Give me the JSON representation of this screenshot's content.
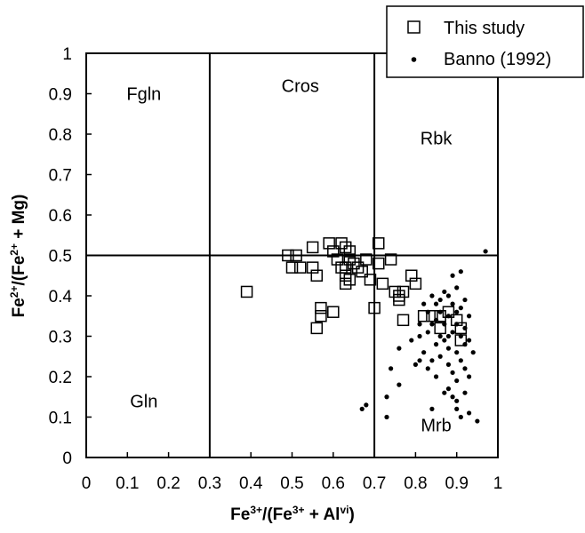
{
  "chart_data": {
    "type": "scatter",
    "title": "",
    "xlabel": {
      "base": "Fe",
      "sup1": "3+",
      "mid": "/(Fe",
      "sup2": "3+",
      "mid2": " + Al",
      "sup3": "vi",
      "end": ")"
    },
    "ylabel": {
      "base": "Fe",
      "sup1": "2+",
      "mid": "/(Fe",
      "sup2": "2+",
      "end": " + Mg)"
    },
    "xlim": [
      0,
      1
    ],
    "ylim": [
      0,
      1
    ],
    "x_ticks": [
      "0",
      "0.1",
      "0.2",
      "0.3",
      "0.4",
      "0.5",
      "0.6",
      "0.7",
      "0.8",
      "0.9",
      "1"
    ],
    "y_ticks": [
      "0",
      "0.1",
      "0.2",
      "0.3",
      "0.4",
      "0.5",
      "0.6",
      "0.7",
      "0.8",
      "0.9",
      "1"
    ],
    "grid": false,
    "legend_position": "top-right",
    "region_lines": [
      {
        "x1": 0.3,
        "y1": 0,
        "x2": 0.3,
        "y2": 1
      },
      {
        "x1": 0.7,
        "y1": 0,
        "x2": 0.7,
        "y2": 1
      },
      {
        "x1": 0,
        "y1": 0.5,
        "x2": 1,
        "y2": 0.5
      }
    ],
    "region_labels": [
      {
        "text": "Fgln",
        "x": 0.14,
        "y": 0.9
      },
      {
        "text": "Cros",
        "x": 0.52,
        "y": 0.92
      },
      {
        "text": "Rbk",
        "x": 0.85,
        "y": 0.79
      },
      {
        "text": "Gln",
        "x": 0.14,
        "y": 0.14
      },
      {
        "text": "Mrb",
        "x": 0.85,
        "y": 0.08
      }
    ],
    "series": [
      {
        "name": "This study",
        "marker": "open-square",
        "points": [
          [
            0.39,
            0.41
          ],
          [
            0.49,
            0.5
          ],
          [
            0.5,
            0.47
          ],
          [
            0.51,
            0.5
          ],
          [
            0.52,
            0.47
          ],
          [
            0.55,
            0.52
          ],
          [
            0.55,
            0.47
          ],
          [
            0.56,
            0.45
          ],
          [
            0.56,
            0.32
          ],
          [
            0.57,
            0.37
          ],
          [
            0.57,
            0.35
          ],
          [
            0.59,
            0.53
          ],
          [
            0.6,
            0.51
          ],
          [
            0.6,
            0.36
          ],
          [
            0.61,
            0.49
          ],
          [
            0.62,
            0.53
          ],
          [
            0.62,
            0.47
          ],
          [
            0.63,
            0.52
          ],
          [
            0.63,
            0.47
          ],
          [
            0.63,
            0.45
          ],
          [
            0.63,
            0.43
          ],
          [
            0.64,
            0.51
          ],
          [
            0.64,
            0.49
          ],
          [
            0.64,
            0.44
          ],
          [
            0.65,
            0.48
          ],
          [
            0.66,
            0.47
          ],
          [
            0.67,
            0.46
          ],
          [
            0.68,
            0.49
          ],
          [
            0.69,
            0.44
          ],
          [
            0.7,
            0.37
          ],
          [
            0.71,
            0.53
          ],
          [
            0.71,
            0.48
          ],
          [
            0.72,
            0.43
          ],
          [
            0.74,
            0.49
          ],
          [
            0.75,
            0.41
          ],
          [
            0.76,
            0.4
          ],
          [
            0.76,
            0.39
          ],
          [
            0.77,
            0.41
          ],
          [
            0.77,
            0.34
          ],
          [
            0.79,
            0.45
          ],
          [
            0.8,
            0.43
          ],
          [
            0.82,
            0.35
          ],
          [
            0.84,
            0.35
          ],
          [
            0.86,
            0.35
          ],
          [
            0.86,
            0.32
          ],
          [
            0.88,
            0.36
          ],
          [
            0.9,
            0.34
          ],
          [
            0.91,
            0.32
          ],
          [
            0.91,
            0.29
          ]
        ]
      },
      {
        "name": "Banno (1992)",
        "marker": "filled-dot",
        "points": [
          [
            0.67,
            0.12
          ],
          [
            0.68,
            0.13
          ],
          [
            0.73,
            0.15
          ],
          [
            0.73,
            0.1
          ],
          [
            0.74,
            0.22
          ],
          [
            0.76,
            0.27
          ],
          [
            0.76,
            0.18
          ],
          [
            0.79,
            0.29
          ],
          [
            0.8,
            0.23
          ],
          [
            0.81,
            0.3
          ],
          [
            0.81,
            0.33
          ],
          [
            0.82,
            0.38
          ],
          [
            0.82,
            0.26
          ],
          [
            0.83,
            0.36
          ],
          [
            0.83,
            0.31
          ],
          [
            0.83,
            0.22
          ],
          [
            0.84,
            0.4
          ],
          [
            0.84,
            0.33
          ],
          [
            0.84,
            0.24
          ],
          [
            0.84,
            0.12
          ],
          [
            0.85,
            0.38
          ],
          [
            0.85,
            0.28
          ],
          [
            0.85,
            0.2
          ],
          [
            0.86,
            0.36
          ],
          [
            0.86,
            0.3
          ],
          [
            0.86,
            0.25
          ],
          [
            0.87,
            0.16
          ],
          [
            0.87,
            0.41
          ],
          [
            0.87,
            0.33
          ],
          [
            0.87,
            0.29
          ],
          [
            0.88,
            0.4
          ],
          [
            0.88,
            0.35
          ],
          [
            0.88,
            0.27
          ],
          [
            0.88,
            0.23
          ],
          [
            0.88,
            0.17
          ],
          [
            0.89,
            0.45
          ],
          [
            0.89,
            0.38
          ],
          [
            0.89,
            0.31
          ],
          [
            0.89,
            0.21
          ],
          [
            0.89,
            0.15
          ],
          [
            0.9,
            0.42
          ],
          [
            0.9,
            0.36
          ],
          [
            0.9,
            0.33
          ],
          [
            0.9,
            0.26
          ],
          [
            0.9,
            0.19
          ],
          [
            0.9,
            0.12
          ],
          [
            0.91,
            0.46
          ],
          [
            0.91,
            0.3
          ],
          [
            0.91,
            0.24
          ],
          [
            0.91,
            0.1
          ],
          [
            0.92,
            0.39
          ],
          [
            0.92,
            0.32
          ],
          [
            0.92,
            0.28
          ],
          [
            0.92,
            0.16
          ],
          [
            0.92,
            0.22
          ],
          [
            0.93,
            0.35
          ],
          [
            0.93,
            0.29
          ],
          [
            0.93,
            0.11
          ],
          [
            0.94,
            0.26
          ],
          [
            0.95,
            0.09
          ],
          [
            0.97,
            0.51
          ],
          [
            0.81,
            0.24
          ],
          [
            0.86,
            0.39
          ],
          [
            0.91,
            0.37
          ],
          [
            0.88,
            0.3
          ],
          [
            0.93,
            0.2
          ],
          [
            0.85,
            0.34
          ],
          [
            0.9,
            0.14
          ]
        ]
      }
    ]
  }
}
